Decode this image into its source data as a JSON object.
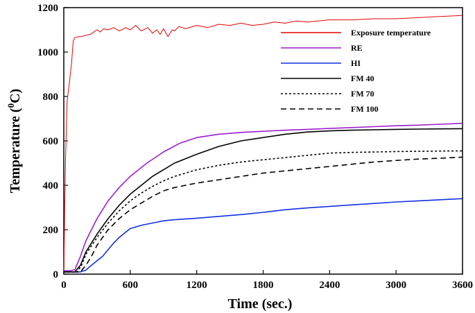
{
  "chart_data": {
    "type": "line",
    "xlabel": "Time (sec.)",
    "ylabel_main": "Temperature (",
    "ylabel_sup": "0",
    "ylabel_tail": "C)",
    "xlim": [
      0,
      3600
    ],
    "ylim": [
      0,
      1200
    ],
    "xticks": [
      0,
      600,
      1200,
      1800,
      2400,
      3000,
      3600
    ],
    "yticks": [
      0,
      200,
      400,
      600,
      800,
      1000,
      1200
    ],
    "grid": false,
    "legend_position": "top-right",
    "series": [
      {
        "name": "Exposure temperature",
        "color": "#e00000",
        "dash": "solid",
        "x": [
          0,
          15,
          30,
          50,
          70,
          85,
          100,
          120,
          160,
          200,
          240,
          300,
          330,
          360,
          400,
          450,
          500,
          560,
          600,
          650,
          700,
          760,
          800,
          840,
          870,
          900,
          940,
          980,
          1000,
          1040,
          1100,
          1200,
          1300,
          1400,
          1500,
          1600,
          1700,
          1800,
          1900,
          2000,
          2100,
          2200,
          2400,
          2600,
          2800,
          3000,
          3200,
          3400,
          3600
        ],
        "y": [
          15,
          500,
          780,
          860,
          950,
          1050,
          1065,
          1068,
          1070,
          1075,
          1080,
          1100,
          1090,
          1105,
          1100,
          1110,
          1095,
          1110,
          1100,
          1120,
          1095,
          1110,
          1085,
          1100,
          1080,
          1105,
          1070,
          1100,
          1095,
          1115,
          1105,
          1120,
          1110,
          1125,
          1120,
          1130,
          1120,
          1125,
          1135,
          1130,
          1140,
          1135,
          1145,
          1145,
          1150,
          1150,
          1155,
          1160,
          1165
        ]
      },
      {
        "name": "RE",
        "color": "#9a1fc8",
        "dash": "solid",
        "x": [
          0,
          60,
          100,
          150,
          200,
          300,
          400,
          500,
          600,
          750,
          900,
          1050,
          1200,
          1400,
          1600,
          1800,
          2000,
          2200,
          2400,
          2600,
          2800,
          3000,
          3200,
          3400,
          3600
        ],
        "y": [
          15,
          15,
          20,
          80,
          150,
          250,
          330,
          390,
          440,
          500,
          550,
          590,
          615,
          630,
          638,
          643,
          648,
          652,
          656,
          660,
          664,
          668,
          671,
          675,
          679
        ]
      },
      {
        "name": "HI",
        "color": "#1030e0",
        "dash": "solid",
        "x": [
          0,
          150,
          200,
          250,
          300,
          350,
          400,
          450,
          500,
          550,
          600,
          700,
          800,
          900,
          1000,
          1200,
          1400,
          1600,
          1800,
          2000,
          2200,
          2400,
          2600,
          2800,
          3000,
          3200,
          3400,
          3600
        ],
        "y": [
          10,
          10,
          18,
          40,
          60,
          80,
          110,
          140,
          165,
          185,
          205,
          220,
          230,
          240,
          245,
          252,
          260,
          268,
          278,
          290,
          298,
          305,
          312,
          318,
          325,
          330,
          335,
          340
        ]
      },
      {
        "name": "FM 40",
        "color": "#000000",
        "dash": "solid",
        "x": [
          0,
          100,
          150,
          200,
          300,
          400,
          500,
          600,
          700,
          800,
          900,
          1000,
          1200,
          1400,
          1600,
          1800,
          2000,
          2200,
          2400,
          2600,
          2800,
          3000,
          3200,
          3400,
          3600
        ],
        "y": [
          10,
          10,
          40,
          100,
          180,
          250,
          310,
          360,
          400,
          440,
          470,
          500,
          540,
          575,
          600,
          615,
          630,
          640,
          645,
          648,
          650,
          652,
          653,
          654,
          655
        ]
      },
      {
        "name": "FM 70",
        "color": "#000000",
        "dash": "dotted",
        "x": [
          0,
          120,
          160,
          200,
          300,
          400,
          500,
          600,
          700,
          800,
          900,
          1000,
          1200,
          1400,
          1600,
          1800,
          2000,
          2200,
          2400,
          2600,
          2800,
          3000,
          3200,
          3400,
          3600
        ],
        "y": [
          10,
          10,
          40,
          90,
          165,
          230,
          285,
          330,
          365,
          395,
          420,
          440,
          470,
          490,
          505,
          515,
          525,
          535,
          545,
          548,
          550,
          552,
          553,
          554,
          555
        ]
      },
      {
        "name": "FM 100",
        "color": "#000000",
        "dash": "dashed",
        "x": [
          0,
          150,
          200,
          250,
          300,
          400,
          500,
          600,
          700,
          800,
          900,
          1000,
          1200,
          1400,
          1600,
          1800,
          2000,
          2200,
          2400,
          2600,
          2800,
          3000,
          3200,
          3400,
          3600
        ],
        "y": [
          10,
          10,
          40,
          80,
          130,
          200,
          250,
          290,
          320,
          350,
          375,
          390,
          410,
          425,
          440,
          455,
          465,
          475,
          485,
          495,
          505,
          512,
          518,
          522,
          527
        ]
      }
    ]
  }
}
